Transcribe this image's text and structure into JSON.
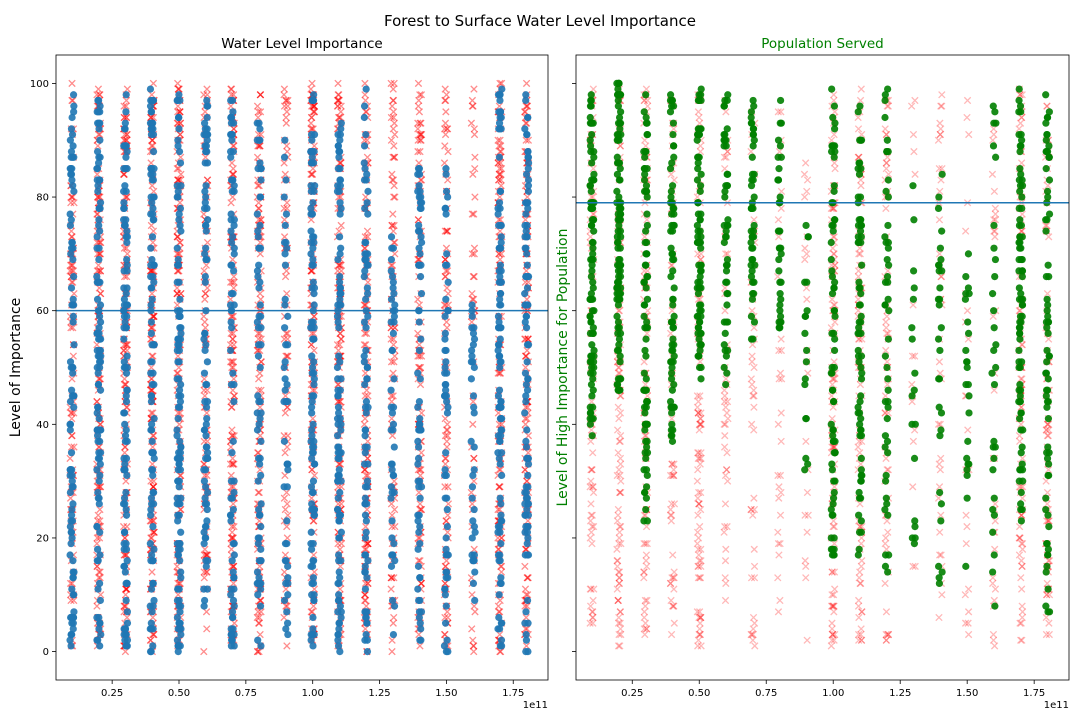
{
  "figure": {
    "title": "Forest to Surface Water Level Importance"
  },
  "chart_data": [
    {
      "type": "scatter",
      "title": "Water Level Importance",
      "title_color": "#000000",
      "xlabel": "",
      "ylabel": "Level of Importance",
      "ylabel_color": "#000000",
      "x_offset_text": "1e11",
      "xlim": [
        0.04,
        1.88
      ],
      "ylim": [
        -5,
        105
      ],
      "x_ticks": [
        0.25,
        0.5,
        0.75,
        1.0,
        1.25,
        1.5,
        1.75
      ],
      "x_tick_labels": [
        "0.25",
        "0.50",
        "0.75",
        "1.00",
        "1.25",
        "1.50",
        "1.75"
      ],
      "y_ticks": [
        0,
        20,
        40,
        60,
        80,
        100
      ],
      "y_tick_labels": [
        "0",
        "20",
        "40",
        "60",
        "80",
        "100"
      ],
      "x_values_e11": [
        0.1,
        0.2,
        0.3,
        0.4,
        0.5,
        0.6,
        0.7,
        0.8,
        0.9,
        1.0,
        1.1,
        1.2,
        1.3,
        1.4,
        1.5,
        1.6,
        1.7,
        1.8
      ],
      "threshold_y": 60,
      "threshold_color": "#1f77b4",
      "series": [
        {
          "marker": "x",
          "color": "#ff0000",
          "y_ranges": [
            [
              0,
              100
            ],
            [
              0,
              100
            ],
            [
              0,
              100
            ],
            [
              0,
              100
            ],
            [
              0,
              100
            ],
            [
              0,
              100
            ],
            [
              0,
              100
            ],
            [
              0,
              100
            ],
            [
              0,
              100
            ],
            [
              0,
              100
            ],
            [
              0,
              100
            ],
            [
              0,
              100
            ],
            [
              0,
              100
            ],
            [
              0,
              100
            ],
            [
              0,
              100
            ],
            [
              0,
              100
            ],
            [
              0,
              100
            ],
            [
              0,
              100
            ]
          ],
          "density": [
            0.6,
            0.9,
            1.0,
            1.0,
            1.0,
            0.6,
            1.0,
            0.9,
            0.5,
            1.0,
            1.0,
            0.9,
            0.6,
            0.7,
            0.6,
            0.35,
            0.9,
            0.9
          ]
        },
        {
          "marker": "o",
          "color": "#1f77b4",
          "y_ranges": [
            [
              0,
              99
            ],
            [
              0,
              99
            ],
            [
              0,
              99
            ],
            [
              0,
              99
            ],
            [
              0,
              99
            ],
            [
              0,
              99
            ],
            [
              0,
              98
            ],
            [
              0,
              99
            ],
            [
              0,
              91
            ],
            [
              0,
              99
            ],
            [
              0,
              97
            ],
            [
              0,
              99
            ],
            [
              0,
              74
            ],
            [
              0,
              87
            ],
            [
              0,
              86
            ],
            [
              4,
              62
            ],
            [
              0,
              99
            ],
            [
              0,
              99
            ]
          ],
          "density": [
            0.8,
            0.9,
            0.9,
            0.9,
            1.0,
            0.7,
            0.7,
            0.6,
            0.4,
            0.9,
            0.9,
            0.7,
            0.4,
            0.6,
            0.5,
            0.3,
            0.9,
            0.8
          ]
        }
      ]
    },
    {
      "type": "scatter",
      "title": "Population Served",
      "title_color": "#008000",
      "xlabel": "",
      "ylabel": "Level of High Importance for Population",
      "ylabel_color": "#008000",
      "x_offset_text": "1e11",
      "xlim": [
        0.04,
        1.88
      ],
      "ylim": [
        -5,
        105
      ],
      "x_ticks": [
        0.25,
        0.5,
        0.75,
        1.0,
        1.25,
        1.5,
        1.75
      ],
      "x_tick_labels": [
        "0.25",
        "0.50",
        "0.75",
        "1.00",
        "1.25",
        "1.50",
        "1.75"
      ],
      "y_ticks": [
        0,
        20,
        40,
        60,
        80,
        100
      ],
      "y_tick_labels": [
        "",
        "",
        "",
        "",
        "",
        ""
      ],
      "x_values_e11": [
        0.1,
        0.2,
        0.3,
        0.4,
        0.5,
        0.6,
        0.7,
        0.8,
        0.9,
        1.0,
        1.1,
        1.2,
        1.3,
        1.4,
        1.5,
        1.6,
        1.7,
        1.8
      ],
      "threshold_y": 79,
      "threshold_color": "#1f77b4",
      "series": [
        {
          "marker": "x",
          "color": "#ff0000",
          "y_ranges": [
            [
              2,
              99
            ],
            [
              1,
              99
            ],
            [
              2,
              99
            ],
            [
              1,
              99
            ],
            [
              1,
              99
            ],
            [
              1,
              98
            ],
            [
              1,
              98
            ],
            [
              1,
              98
            ],
            [
              1,
              86
            ],
            [
              1,
              99
            ],
            [
              1,
              99
            ],
            [
              1,
              99
            ],
            [
              12,
              100
            ],
            [
              1,
              98
            ],
            [
              1,
              99
            ],
            [
              1,
              98
            ],
            [
              1,
              99
            ],
            [
              1,
              98
            ]
          ],
          "density": [
            0.5,
            0.7,
            0.6,
            0.4,
            0.6,
            0.3,
            0.3,
            0.2,
            0.15,
            0.7,
            0.6,
            0.4,
            0.1,
            0.25,
            0.15,
            0.2,
            0.6,
            0.5
          ]
        },
        {
          "marker": "o",
          "color": "#008000",
          "y_ranges": [
            [
              38,
              99
            ],
            [
              46,
              100
            ],
            [
              21,
              99
            ],
            [
              37,
              99
            ],
            [
              46,
              99
            ],
            [
              47,
              99
            ],
            [
              53,
              98
            ],
            [
              56,
              99
            ],
            [
              32,
              77
            ],
            [
              16,
              99
            ],
            [
              17,
              98
            ],
            [
              14,
              99
            ],
            [
              12,
              83
            ],
            [
              10,
              91
            ],
            [
              13,
              76
            ],
            [
              4,
              97
            ],
            [
              23,
              99
            ],
            [
              6,
              99
            ]
          ],
          "density": [
            0.8,
            0.9,
            0.7,
            0.6,
            0.7,
            0.4,
            0.4,
            0.3,
            0.15,
            0.6,
            0.6,
            0.4,
            0.15,
            0.25,
            0.2,
            0.25,
            0.7,
            0.6
          ]
        }
      ]
    }
  ]
}
